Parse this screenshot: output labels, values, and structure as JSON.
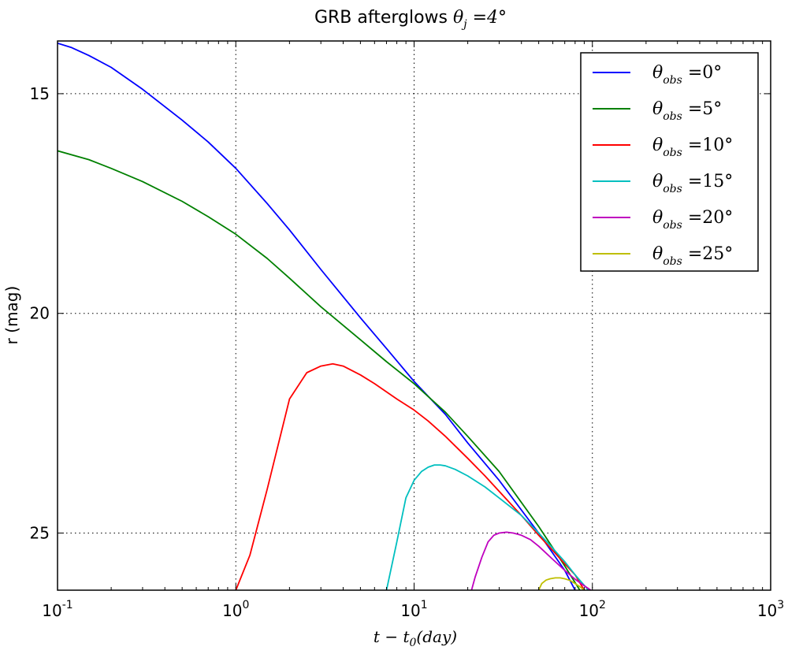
{
  "chart_data": {
    "type": "line",
    "title": {
      "prefix": "GRB afterglows ",
      "math_symbol": "θ",
      "math_sub": "j",
      "math_rest": " =4°"
    },
    "xlabel": {
      "main": "t",
      "op": " − ",
      "var": "t",
      "sub": "0",
      "rest": "(day)"
    },
    "ylabel": "r (mag)",
    "x_scale": "log",
    "xlim": [
      0.1,
      1000
    ],
    "ylim": [
      26.3,
      13.8
    ],
    "y_inverted": true,
    "grid": true,
    "legend_position": "top-right",
    "x_ticks": [
      {
        "value": 0.1,
        "base": "10",
        "exp": "-1"
      },
      {
        "value": 1,
        "base": "10",
        "exp": "0"
      },
      {
        "value": 10,
        "base": "10",
        "exp": "1"
      },
      {
        "value": 100,
        "base": "10",
        "exp": "2"
      },
      {
        "value": 1000,
        "base": "10",
        "exp": "3"
      }
    ],
    "y_ticks": [
      {
        "value": 15,
        "label": "15"
      },
      {
        "value": 20,
        "label": "20"
      },
      {
        "value": 25,
        "label": "25"
      }
    ],
    "series": [
      {
        "name": {
          "sym": "θ",
          "sub": "obs",
          "val": " =0°"
        },
        "color": "#0000ff",
        "x": [
          0.1,
          0.12,
          0.15,
          0.2,
          0.3,
          0.5,
          0.7,
          1.0,
          1.5,
          2,
          3,
          5,
          7,
          10,
          15,
          20,
          30,
          50,
          70,
          80
        ],
        "y": [
          13.85,
          13.95,
          14.13,
          14.4,
          14.9,
          15.6,
          16.1,
          16.7,
          17.5,
          18.1,
          19.0,
          20.1,
          20.8,
          21.55,
          22.3,
          22.95,
          23.8,
          25.0,
          25.85,
          26.3
        ]
      },
      {
        "name": {
          "sym": "θ",
          "sub": "obs",
          "val": " =5°"
        },
        "color": "#008000",
        "x": [
          0.1,
          0.15,
          0.2,
          0.3,
          0.5,
          0.7,
          1.0,
          1.5,
          2,
          3,
          5,
          7,
          10,
          15,
          20,
          30,
          50,
          70,
          85
        ],
        "y": [
          16.3,
          16.5,
          16.7,
          17.0,
          17.45,
          17.8,
          18.2,
          18.75,
          19.2,
          19.85,
          20.6,
          21.1,
          21.6,
          22.25,
          22.8,
          23.6,
          24.85,
          25.75,
          26.3
        ]
      },
      {
        "name": {
          "sym": "θ",
          "sub": "obs",
          "val": " =10°"
        },
        "color": "#ff0000",
        "x": [
          1.0,
          1.2,
          1.5,
          2.0,
          2.5,
          3.0,
          3.5,
          4.0,
          5.0,
          6.0,
          8.0,
          10,
          12,
          15,
          20,
          25,
          30,
          40,
          50,
          60,
          70,
          80,
          90
        ],
        "y": [
          26.3,
          25.5,
          24.0,
          21.95,
          21.35,
          21.2,
          21.15,
          21.2,
          21.4,
          21.6,
          21.95,
          22.2,
          22.45,
          22.8,
          23.3,
          23.7,
          24.05,
          24.6,
          25.05,
          25.4,
          25.7,
          25.95,
          26.3
        ]
      },
      {
        "name": {
          "sym": "θ",
          "sub": "obs",
          "val": " =15°"
        },
        "color": "#00bfbf",
        "x": [
          7.0,
          8.0,
          9.0,
          10,
          11,
          12,
          13,
          14,
          15,
          17,
          20,
          25,
          30,
          40,
          50,
          60,
          70,
          80,
          95
        ],
        "y": [
          26.3,
          25.2,
          24.2,
          23.8,
          23.6,
          23.5,
          23.45,
          23.45,
          23.47,
          23.55,
          23.7,
          23.95,
          24.2,
          24.6,
          25.0,
          25.35,
          25.65,
          25.95,
          26.3
        ]
      },
      {
        "name": {
          "sym": "θ",
          "sub": "obs",
          "val": " =20°"
        },
        "color": "#bf00bf",
        "x": [
          21,
          22,
          24,
          26,
          28,
          30,
          33,
          36,
          40,
          45,
          50,
          60,
          70,
          80,
          90,
          98
        ],
        "y": [
          26.3,
          26.0,
          25.55,
          25.2,
          25.05,
          25.0,
          24.98,
          25.0,
          25.05,
          25.15,
          25.3,
          25.6,
          25.85,
          26.05,
          26.2,
          26.3
        ]
      },
      {
        "name": {
          "sym": "θ",
          "sub": "obs",
          "val": " =25°"
        },
        "color": "#bfbf00",
        "x": [
          50,
          52,
          55,
          58,
          62,
          66,
          70,
          75,
          80,
          85,
          90
        ],
        "y": [
          26.3,
          26.15,
          26.07,
          26.04,
          26.02,
          26.02,
          26.04,
          26.08,
          26.15,
          26.22,
          26.3
        ]
      }
    ]
  }
}
